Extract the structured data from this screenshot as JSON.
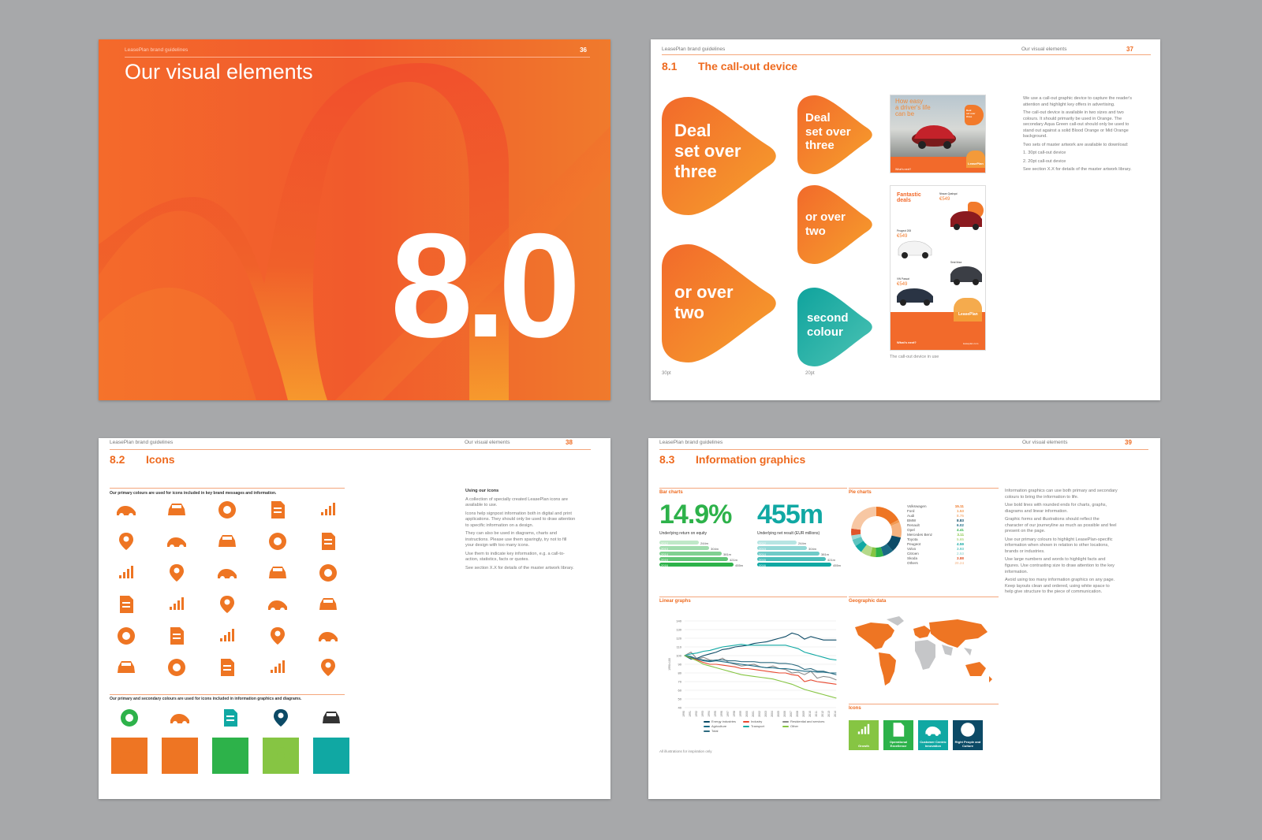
{
  "p36": {
    "running": "LeasePlan brand guidelines",
    "page": "36",
    "title": "Our visual elements",
    "number": "8.0"
  },
  "p37": {
    "running": "LeasePlan brand guidelines",
    "section_running": "Our visual elements",
    "page": "37",
    "sec_num": "8.1",
    "sec_title": "The call-out device",
    "callouts": [
      "Deal\nset over\nthree",
      "or over\ntwo",
      "Deal\nset over\nthree",
      "or over\ntwo",
      "second\ncolour"
    ],
    "size_30": "30pt",
    "size_20": "20pt",
    "ad1": {
      "headline": "How easy\na driver's life\ncan be",
      "badge": "Deal\nset over\nthree",
      "brand": "LeasePlan",
      "cta": "What's next?"
    },
    "ad2": {
      "headline": "Fantastic\ndeals",
      "cars": [
        {
          "name": "Nissan Qashqai",
          "price": "€549"
        },
        {
          "name": "Peugeot 208",
          "price": "€549"
        },
        {
          "name": "Seat Ibiza",
          "price": ""
        },
        {
          "name": "VW Passat",
          "price": "€549"
        }
      ],
      "brand": "LeasePlan",
      "cta": "What's next?",
      "web": "leaseplan.com"
    },
    "ad_caption": "The call-out device in use",
    "body": [
      "We use a call-out graphic device to capture the reader's attention and highlight key offers in advertising.",
      "The call-out device is available in two sizes and two colours. It should primarily be used in Orange. The secondary Aqua Green call-out should only be used to stand out against a solid Blood Orange or Mid Orange background.",
      "Two sets of master artwork are available to download:",
      "1. 30pt call-out device",
      "2. 20pt call-out device",
      "See section X.X for details of the master artwork library."
    ]
  },
  "p38": {
    "running": "LeasePlan brand guidelines",
    "section_running": "Our visual elements",
    "page": "38",
    "sec_num": "8.2",
    "sec_title": "Icons",
    "primary_label": "Our primary colours are used for icons included in key brand messages and information.",
    "secondary_label": "Our primary and secondary colours are used for icons included in information graphics and diagrams.",
    "side_title": "Using our icons",
    "side_body": [
      "A collection of specially created LeasePlan icons are available to use.",
      "Icons help signpost information both in digital and print applications. They should only be used to draw attention to specific information on a design.",
      "They can also be used in diagrams, charts and instructions. Please use them sparingly, try not to fill your design with too many icons.",
      "Use them to indicate key information, e.g. a call-to-action, statistics, facts or quotes.",
      "See section X.X for details of the master artwork library."
    ],
    "icon_names": [
      "car-crash-icon",
      "car-sale-icon",
      "car-breakdown-icon",
      "car-repair-icon",
      "calculator-icon",
      "car-finance-icon",
      "car-front-icon",
      "tyre-icon",
      "driver-support-icon",
      "car-fast-icon",
      "no-parking-icon",
      "documents-icon",
      "car-growth-icon",
      "car-card-icon",
      "car-side-icon",
      "location-pin-icon",
      "car-service-icon",
      "scales-icon",
      "car-swap-icon",
      "growth-chart-icon",
      "car-globe-icon",
      "car-lift-icon",
      "car-boot-icon",
      "car-connected-icon",
      "signature-icon",
      "car-payment-icon",
      "car-report-icon",
      "tyre-check-icon",
      "car-collision-icon",
      "car-question-icon"
    ],
    "sec_icon_names": [
      "award-icon",
      "car-wash-icon",
      "document-edit-icon",
      "fuel-pump-icon",
      "car-emission-icon"
    ],
    "square_icon_names": [
      "car-arrow-icon",
      "tow-truck-icon",
      "calendar-icon",
      "globe-icon",
      "form-edit-icon"
    ],
    "colors": {
      "orange": "#ee7523",
      "green": "#2db24a",
      "teal": "#10a8a3",
      "navy": "#0c4a66",
      "lime": "#86c543"
    }
  },
  "p39": {
    "running": "LeasePlan brand guidelines",
    "section_running": "Our visual elements",
    "page": "39",
    "sec_num": "8.3",
    "sec_title": "Information graphics",
    "bar_head": "Bar charts",
    "pie_head": "Pie charts",
    "line_head": "Linear graphs",
    "geo_head": "Geographic data",
    "icons_head": "Icons",
    "footnote": "All illustrations for inspiration only",
    "stat1": {
      "value": "14.9%",
      "label": "Underlying return on equity"
    },
    "stat2": {
      "value": "455m",
      "label": "Underlying net result (EUR millions)"
    },
    "body": [
      "Information graphics can use both primary and secondary colours to bring the information to life.",
      "Use bold lines with rounded ends for charts, graphs, diagrams and linear information.",
      "Graphic forms and illustrations should reflect the character of our journeyline as much as possible and feel present on the page.",
      "Use our primary colours to highlight LeasePlan-specific information when shown in relation to other locations, brands or industries.",
      "Use large numbers and words to highlight facts and figures. Use contrasting size to draw attention to the key information.",
      "Avoid using too many information graphics on any page. Keep layouts clean and ordered, using white space to help give structure to the piece of communication."
    ],
    "kpis": [
      {
        "label": "Growth",
        "color": "#86c543"
      },
      {
        "label": "Operational Excellence",
        "color": "#2db24a"
      },
      {
        "label": "Customer Centric Innovation",
        "color": "#10a8a3"
      },
      {
        "label": "Right People and Culture",
        "color": "#0c4a66"
      }
    ]
  },
  "chart_data": [
    {
      "type": "bar",
      "title": "Bar charts",
      "categories": [
        "2012",
        "2013",
        "2014",
        "2015",
        "2016"
      ],
      "value_labels": [
        "244m",
        "304m",
        "381m",
        "421m",
        "455m"
      ],
      "values": [
        244,
        304,
        381,
        421,
        455
      ],
      "color": "#2db24a"
    },
    {
      "type": "bar",
      "categories": [
        "2012",
        "2013",
        "2014",
        "2015",
        "2016"
      ],
      "value_labels": [
        "244m",
        "304m",
        "381m",
        "421m",
        "455m"
      ],
      "values": [
        244,
        304,
        381,
        421,
        455
      ],
      "color": "#10a8a3"
    },
    {
      "type": "pie",
      "title": "Pie charts",
      "labels": [
        "Volkswagen",
        "Ford",
        "Audi",
        "BMW",
        "Renault",
        "Opel",
        "Mercedes Benz",
        "Toyota",
        "Peugeot",
        "Volvo",
        "Citroen",
        "Skoda",
        "Others"
      ],
      "value_labels": [
        "15.11",
        "1.53",
        "8.75",
        "8.83",
        "6.02",
        "4.41",
        "3.11",
        "5.65",
        "4.59",
        "3.93",
        "2.53",
        "3.88",
        "20.24"
      ],
      "values": [
        15.11,
        1.53,
        8.75,
        8.83,
        6.02,
        4.41,
        3.11,
        5.65,
        4.59,
        3.93,
        2.53,
        3.88,
        20.24
      ],
      "colors": [
        "#ee7523",
        "#f39a52",
        "#f6b27f",
        "#0c4a66",
        "#1b6b85",
        "#2db24a",
        "#86c543",
        "#b5d98a",
        "#10a8a3",
        "#5cc4c0",
        "#9fdad7",
        "#e0552a",
        "#f7c7a3"
      ]
    },
    {
      "type": "line",
      "title": "Linear graphs",
      "ylabel": "1990=100",
      "x": [
        "1990",
        "1991",
        "1992",
        "1993",
        "1994",
        "1995",
        "1996",
        "1997",
        "1998",
        "1999",
        "2000",
        "2001",
        "2002",
        "2003",
        "2004",
        "2005",
        "2006",
        "2007",
        "2008",
        "2009",
        "2010",
        "2011",
        "2012",
        "2013",
        "2014"
      ],
      "ylim": [
        40,
        140
      ],
      "yticks": [
        40,
        50,
        60,
        70,
        80,
        90,
        100,
        110,
        120,
        130,
        140
      ],
      "series": [
        {
          "name": "Energy industries",
          "color": "#0c4a66",
          "values": [
            100,
            96,
            97,
            100,
            102,
            104,
            107,
            108,
            110,
            111,
            112,
            114,
            115,
            116,
            118,
            120,
            122,
            126,
            124,
            119,
            122,
            120,
            118,
            118,
            118
          ]
        },
        {
          "name": "Industry",
          "color": "#e8482f",
          "values": [
            100,
            98,
            95,
            92,
            90,
            90,
            89,
            88,
            87,
            85,
            85,
            84,
            83,
            82,
            81,
            80,
            80,
            78,
            77,
            70,
            72,
            70,
            69,
            68,
            67
          ]
        },
        {
          "name": "Residential and services",
          "color": "#8a8a8a",
          "values": [
            100,
            104,
            96,
            98,
            95,
            94,
            97,
            92,
            90,
            88,
            89,
            90,
            87,
            86,
            88,
            85,
            84,
            80,
            81,
            78,
            82,
            74,
            76,
            75,
            72
          ]
        },
        {
          "name": "Agriculture",
          "color": "#1b6b85",
          "values": [
            100,
            99,
            96,
            94,
            93,
            94,
            93,
            92,
            91,
            90,
            89,
            88,
            87,
            86,
            86,
            85,
            85,
            84,
            83,
            82,
            82,
            81,
            81,
            80,
            80
          ]
        },
        {
          "name": "Transport",
          "color": "#10a8a3",
          "values": [
            100,
            102,
            103,
            105,
            106,
            108,
            110,
            111,
            112,
            113,
            112,
            112,
            112,
            112,
            112,
            112,
            112,
            110,
            108,
            104,
            102,
            100,
            98,
            96,
            95
          ]
        },
        {
          "name": "Total",
          "color": "#2d6b80",
          "values": [
            100,
            98,
            96,
            95,
            94,
            95,
            95,
            94,
            94,
            93,
            93,
            93,
            92,
            92,
            92,
            91,
            91,
            90,
            88,
            84,
            85,
            82,
            82,
            80,
            78
          ]
        },
        {
          "name": "Other",
          "color": "#86c543",
          "values": [
            100,
            97,
            94,
            90,
            88,
            86,
            84,
            82,
            80,
            78,
            77,
            76,
            75,
            74,
            73,
            71,
            69,
            67,
            64,
            61,
            59,
            57,
            55,
            53,
            51
          ]
        }
      ]
    }
  ]
}
